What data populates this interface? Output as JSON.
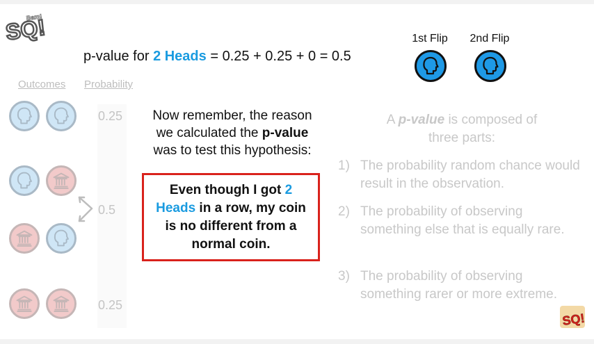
{
  "title": {
    "prefix": "p-value for ",
    "highlight": "2 Heads",
    "suffix": " = 0.25 + 0.25 + 0 = 0.5"
  },
  "flips": {
    "first_label": "1st Flip",
    "second_label": "2nd Flip"
  },
  "table": {
    "outcomes_header": "Outcomes",
    "probability_header": "Probability",
    "rows": [
      {
        "coins": [
          "head",
          "head"
        ]
      },
      {
        "coins": [
          "head",
          "tail"
        ]
      },
      {
        "coins": [
          "tail",
          "head"
        ]
      },
      {
        "coins": [
          "tail",
          "tail"
        ]
      }
    ],
    "probabilities": {
      "two_heads": "0.25",
      "one_each": "0.5",
      "two_tails": "0.25"
    }
  },
  "reminder": {
    "line1": "Now remember, the reason",
    "line2_pre": "we calculated the ",
    "line2_bold": "p-value",
    "line3": "was to test this hypothesis:"
  },
  "hypothesis": {
    "pre": "Even though I got ",
    "highlight_num": "2",
    "highlight_word": "Heads",
    "post_1": " in a row, my coin",
    "post_2": "is no different from a",
    "post_3": "normal coin."
  },
  "parts": {
    "intro_pre": "A ",
    "intro_bold": "p-value",
    "intro_post": " is composed of",
    "intro_line2": "three parts:",
    "items": [
      {
        "num": "1)",
        "text": "The probability random chance would result in the observation."
      },
      {
        "num": "2)",
        "text": "The probability of observing something else that is equally rare."
      },
      {
        "num": "3)",
        "text": "The probability of observing something rarer or more extreme."
      }
    ]
  },
  "logo": {
    "text": "SQ!",
    "subtext": "Bam!"
  },
  "colors": {
    "accent_blue": "#1a9be0",
    "box_red": "#d9221c",
    "faded": "#c8c8c8"
  }
}
